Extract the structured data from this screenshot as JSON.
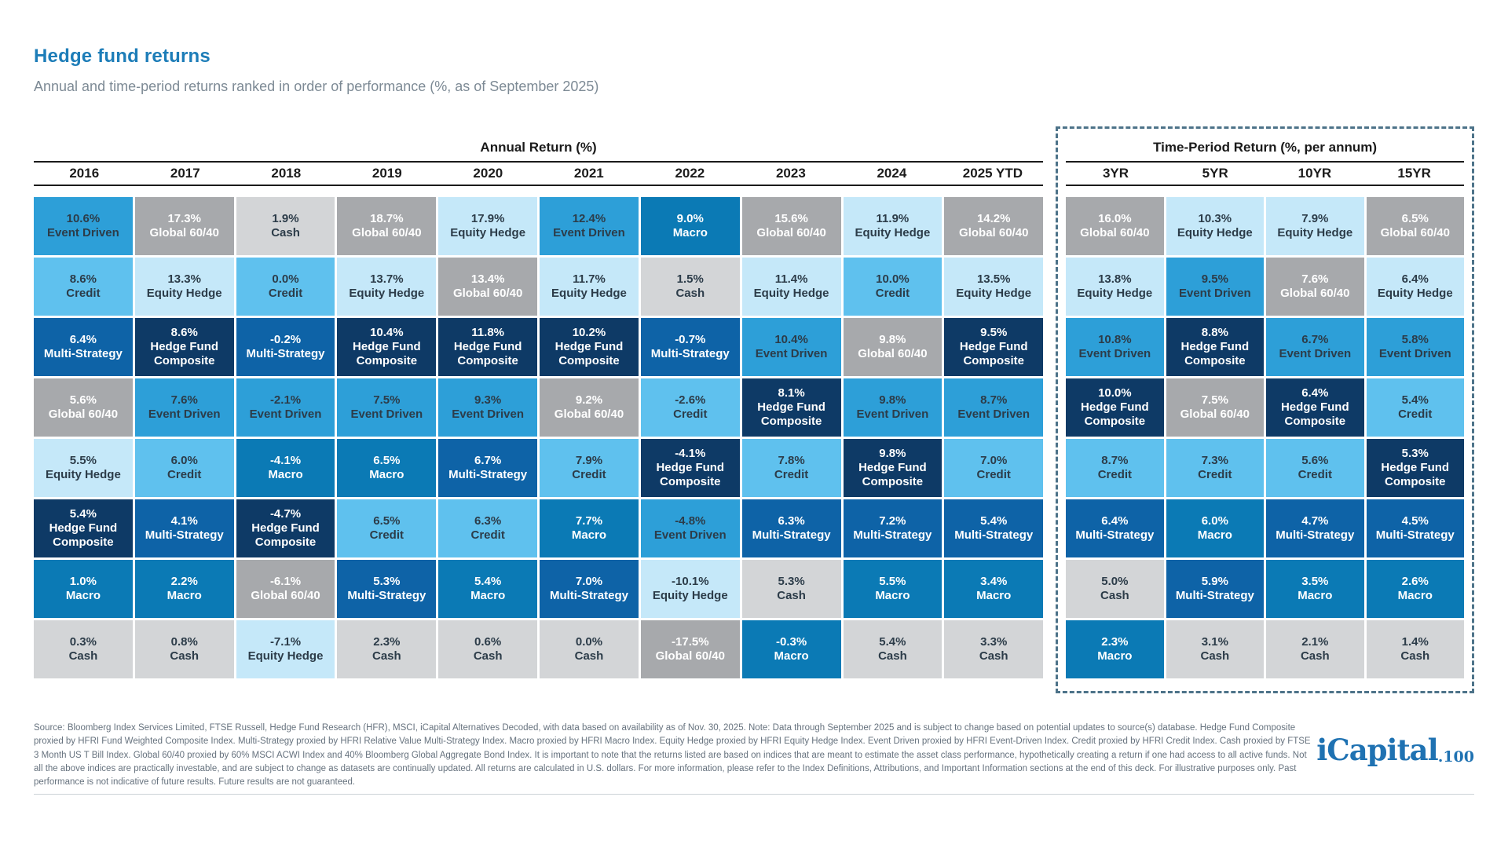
{
  "page": {
    "title": "Hedge fund returns",
    "subtitle": "Annual and time-period returns ranked in order of performance (%, as of September 2025)"
  },
  "chart_data": {
    "type": "table",
    "title": "Hedge fund returns",
    "subtitle": "Annual and time-period returns ranked in order of performance (%, as of September 2025)",
    "layout_hint": "quilt chart: each column ranks asset classes by return, best to worst; values are percent returns",
    "category_colors": {
      "Event Driven": {
        "bg": "#2d9fd8",
        "fg": "#2c3c49"
      },
      "Global 60/40": {
        "bg": "#a7a9ac",
        "fg": "#ffffff"
      },
      "Cash": {
        "bg": "#d3d5d7",
        "fg": "#2c3c49"
      },
      "Credit": {
        "bg": "#5fc1ee",
        "fg": "#2c3c49"
      },
      "Equity Hedge": {
        "bg": "#c5e8f9",
        "fg": "#2c3c49"
      },
      "Multi-Strategy": {
        "bg": "#0e63a7",
        "fg": "#ffffff"
      },
      "Hedge Fund Composite": {
        "bg": "#0e3a66",
        "fg": "#ffffff"
      },
      "Macro": {
        "bg": "#0b7ab5",
        "fg": "#ffffff"
      }
    },
    "groups": [
      {
        "title": "Annual Return (%)",
        "columns": [
          {
            "label": "2016",
            "cells": [
              {
                "value": "10.6%",
                "label": "Event Driven"
              },
              {
                "value": "8.6%",
                "label": "Credit"
              },
              {
                "value": "6.4%",
                "label": "Multi-Strategy"
              },
              {
                "value": "5.6%",
                "label": "Global 60/40"
              },
              {
                "value": "5.5%",
                "label": "Equity Hedge"
              },
              {
                "value": "5.4%",
                "label": "Hedge Fund Composite"
              },
              {
                "value": "1.0%",
                "label": "Macro"
              },
              {
                "value": "0.3%",
                "label": "Cash"
              }
            ]
          },
          {
            "label": "2017",
            "cells": [
              {
                "value": "17.3%",
                "label": "Global 60/40"
              },
              {
                "value": "13.3%",
                "label": "Equity Hedge"
              },
              {
                "value": "8.6%",
                "label": "Hedge Fund Composite"
              },
              {
                "value": "7.6%",
                "label": "Event Driven"
              },
              {
                "value": "6.0%",
                "label": "Credit"
              },
              {
                "value": "4.1%",
                "label": "Multi-Strategy"
              },
              {
                "value": "2.2%",
                "label": "Macro"
              },
              {
                "value": "0.8%",
                "label": "Cash"
              }
            ]
          },
          {
            "label": "2018",
            "cells": [
              {
                "value": "1.9%",
                "label": "Cash"
              },
              {
                "value": "0.0%",
                "label": "Credit"
              },
              {
                "value": "-0.2%",
                "label": "Multi-Strategy"
              },
              {
                "value": "-2.1%",
                "label": "Event Driven"
              },
              {
                "value": "-4.1%",
                "label": "Macro"
              },
              {
                "value": "-4.7%",
                "label": "Hedge Fund Composite"
              },
              {
                "value": "-6.1%",
                "label": "Global 60/40"
              },
              {
                "value": "-7.1%",
                "label": "Equity Hedge"
              }
            ]
          },
          {
            "label": "2019",
            "cells": [
              {
                "value": "18.7%",
                "label": "Global 60/40"
              },
              {
                "value": "13.7%",
                "label": "Equity Hedge"
              },
              {
                "value": "10.4%",
                "label": "Hedge Fund Composite"
              },
              {
                "value": "7.5%",
                "label": "Event Driven"
              },
              {
                "value": "6.5%",
                "label": "Macro"
              },
              {
                "value": "6.5%",
                "label": "Credit"
              },
              {
                "value": "5.3%",
                "label": "Multi-Strategy"
              },
              {
                "value": "2.3%",
                "label": "Cash"
              }
            ]
          },
          {
            "label": "2020",
            "cells": [
              {
                "value": "17.9%",
                "label": "Equity Hedge"
              },
              {
                "value": "13.4%",
                "label": "Global 60/40"
              },
              {
                "value": "11.8%",
                "label": "Hedge Fund Composite"
              },
              {
                "value": "9.3%",
                "label": "Event Driven"
              },
              {
                "value": "6.7%",
                "label": "Multi-Strategy"
              },
              {
                "value": "6.3%",
                "label": "Credit"
              },
              {
                "value": "5.4%",
                "label": "Macro"
              },
              {
                "value": "0.6%",
                "label": "Cash"
              }
            ]
          },
          {
            "label": "2021",
            "cells": [
              {
                "value": "12.4%",
                "label": "Event Driven"
              },
              {
                "value": "11.7%",
                "label": "Equity Hedge"
              },
              {
                "value": "10.2%",
                "label": "Hedge Fund Composite"
              },
              {
                "value": "9.2%",
                "label": "Global 60/40"
              },
              {
                "value": "7.9%",
                "label": "Credit"
              },
              {
                "value": "7.7%",
                "label": "Macro"
              },
              {
                "value": "7.0%",
                "label": "Multi-Strategy"
              },
              {
                "value": "0.0%",
                "label": "Cash"
              }
            ]
          },
          {
            "label": "2022",
            "cells": [
              {
                "value": "9.0%",
                "label": "Macro"
              },
              {
                "value": "1.5%",
                "label": "Cash"
              },
              {
                "value": "-0.7%",
                "label": "Multi-Strategy"
              },
              {
                "value": "-2.6%",
                "label": "Credit"
              },
              {
                "value": "-4.1%",
                "label": "Hedge Fund Composite"
              },
              {
                "value": "-4.8%",
                "label": "Event Driven"
              },
              {
                "value": "-10.1%",
                "label": "Equity Hedge"
              },
              {
                "value": "-17.5%",
                "label": "Global 60/40"
              }
            ]
          },
          {
            "label": "2023",
            "cells": [
              {
                "value": "15.6%",
                "label": "Global 60/40"
              },
              {
                "value": "11.4%",
                "label": "Equity Hedge"
              },
              {
                "value": "10.4%",
                "label": "Event Driven"
              },
              {
                "value": "8.1%",
                "label": "Hedge Fund Composite"
              },
              {
                "value": "7.8%",
                "label": "Credit"
              },
              {
                "value": "6.3%",
                "label": "Multi-Strategy"
              },
              {
                "value": "5.3%",
                "label": "Cash"
              },
              {
                "value": "-0.3%",
                "label": "Macro"
              }
            ]
          },
          {
            "label": "2024",
            "cells": [
              {
                "value": "11.9%",
                "label": "Equity Hedge"
              },
              {
                "value": "10.0%",
                "label": "Credit"
              },
              {
                "value": "9.8%",
                "label": "Global 60/40"
              },
              {
                "value": "9.8%",
                "label": "Event Driven"
              },
              {
                "value": "9.8%",
                "label": "Hedge Fund Composite"
              },
              {
                "value": "7.2%",
                "label": "Multi-Strategy"
              },
              {
                "value": "5.5%",
                "label": "Macro"
              },
              {
                "value": "5.4%",
                "label": "Cash"
              }
            ]
          },
          {
            "label": "2025 YTD",
            "cells": [
              {
                "value": "14.2%",
                "label": "Global 60/40"
              },
              {
                "value": "13.5%",
                "label": "Equity Hedge"
              },
              {
                "value": "9.5%",
                "label": "Hedge Fund Composite"
              },
              {
                "value": "8.7%",
                "label": "Event Driven"
              },
              {
                "value": "7.0%",
                "label": "Credit"
              },
              {
                "value": "5.4%",
                "label": "Multi-Strategy"
              },
              {
                "value": "3.4%",
                "label": "Macro"
              },
              {
                "value": "3.3%",
                "label": "Cash"
              }
            ]
          }
        ]
      },
      {
        "title": "Time-Period Return (%, per annum)",
        "columns": [
          {
            "label": "3YR",
            "cells": [
              {
                "value": "16.0%",
                "label": "Global 60/40"
              },
              {
                "value": "13.8%",
                "label": "Equity Hedge"
              },
              {
                "value": "10.8%",
                "label": "Event Driven"
              },
              {
                "value": "10.0%",
                "label": "Hedge Fund Composite"
              },
              {
                "value": "8.7%",
                "label": "Credit"
              },
              {
                "value": "6.4%",
                "label": "Multi-Strategy"
              },
              {
                "value": "5.0%",
                "label": "Cash"
              },
              {
                "value": "2.3%",
                "label": "Macro"
              }
            ]
          },
          {
            "label": "5YR",
            "cells": [
              {
                "value": "10.3%",
                "label": "Equity Hedge"
              },
              {
                "value": "9.5%",
                "label": "Event Driven"
              },
              {
                "value": "8.8%",
                "label": "Hedge Fund Composite"
              },
              {
                "value": "7.5%",
                "label": "Global 60/40"
              },
              {
                "value": "7.3%",
                "label": "Credit"
              },
              {
                "value": "6.0%",
                "label": "Macro"
              },
              {
                "value": "5.9%",
                "label": "Multi-Strategy"
              },
              {
                "value": "3.1%",
                "label": "Cash"
              }
            ]
          },
          {
            "label": "10YR",
            "cells": [
              {
                "value": "7.9%",
                "label": "Equity Hedge"
              },
              {
                "value": "7.6%",
                "label": "Global 60/40"
              },
              {
                "value": "6.7%",
                "label": "Event Driven"
              },
              {
                "value": "6.4%",
                "label": "Hedge Fund Composite"
              },
              {
                "value": "5.6%",
                "label": "Credit"
              },
              {
                "value": "4.7%",
                "label": "Multi-Strategy"
              },
              {
                "value": "3.5%",
                "label": "Macro"
              },
              {
                "value": "2.1%",
                "label": "Cash"
              }
            ]
          },
          {
            "label": "15YR",
            "cells": [
              {
                "value": "6.5%",
                "label": "Global 60/40"
              },
              {
                "value": "6.4%",
                "label": "Equity Hedge"
              },
              {
                "value": "5.8%",
                "label": "Event Driven"
              },
              {
                "value": "5.4%",
                "label": "Credit"
              },
              {
                "value": "5.3%",
                "label": "Hedge Fund Composite"
              },
              {
                "value": "4.5%",
                "label": "Multi-Strategy"
              },
              {
                "value": "2.6%",
                "label": "Macro"
              },
              {
                "value": "1.4%",
                "label": "Cash"
              }
            ]
          }
        ]
      }
    ]
  },
  "footer": {
    "disclaimer": "Source: Bloomberg Index Services Limited, FTSE Russell, Hedge Fund Research (HFR), MSCI, iCapital Alternatives Decoded, with data based on availability as of Nov. 30, 2025. Note: Data through September 2025 and is subject to change based on potential updates to source(s) database. Hedge Fund Composite proxied by HFRI Fund Weighted Composite Index. Multi-Strategy proxied by HFRI Relative Value Multi-Strategy Index. Macro proxied by HFRI Macro Index. Equity Hedge proxied by HFRI Equity Hedge Index. Event Driven proxied by HFRI Event-Driven Index. Credit proxied by HFRI Credit Index. Cash proxied by FTSE 3 Month US T Bill Index. Global 60/40 proxied by 60% MSCI ACWI Index and 40% Bloomberg Global Aggregate Bond Index. It is important to note that the returns listed are based on indices that are meant to estimate the asset class performance, hypothetically creating a return if one had access to all active funds. Not all the above indices are practically investable, and are subject to change as datasets are continually updated. All returns are calculated in U.S. dollars. For more information, please refer to the Index Definitions, Attributions, and Important Information sections at the end of this deck. For illustrative purposes only. Past performance is not indicative of future results. Future results are not guaranteed.",
    "logo_text": "iCapital",
    "logo_suffix": ".100"
  }
}
